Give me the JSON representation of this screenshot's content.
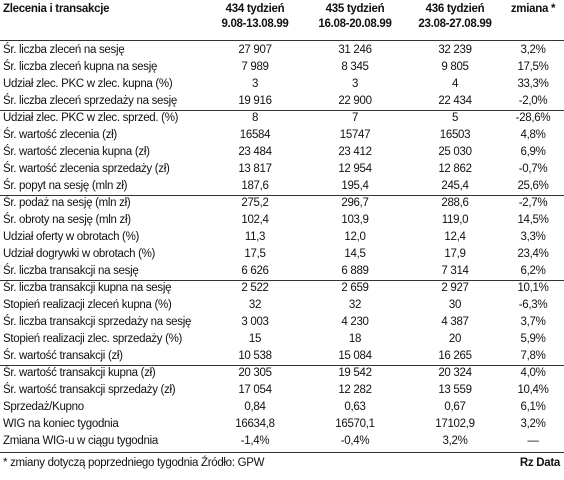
{
  "header": {
    "title": "Zlecenia i transakcje",
    "columns": [
      {
        "week": "434 tydzień",
        "dates": "9.08-13.08.99"
      },
      {
        "week": "435 tydzień",
        "dates": "16.08-20.08.99"
      },
      {
        "week": "436 tydzień",
        "dates": "23.08-27.08.99"
      }
    ],
    "change": "zmiana *"
  },
  "table": {
    "rows": [
      [
        "Śr. liczba zleceń na sesję",
        "27 907",
        "31 246",
        "32 239",
        "3,2%"
      ],
      [
        "Śr. liczba zleceń kupna na sesję",
        "7 989",
        "8 345",
        "9 805",
        "17,5%"
      ],
      [
        "Udział zlec. PKC w zlec. kupna (%)",
        "3",
        "3",
        "4",
        "33,3%"
      ],
      [
        "Śr. liczba zleceń sprzedaży na sesję",
        "19 916",
        "22 900",
        "22 434",
        "-2,0%"
      ],
      [
        "Udział zlec. PKC w zlec. sprzed. (%)",
        "8",
        "7",
        "5",
        "-28,6%"
      ],
      [
        "Śr. wartość zlecenia (zł)",
        "16584",
        "15747",
        "16503",
        "4,8%"
      ],
      [
        "Śr. wartość zlecenia kupna (zł)",
        "23 484",
        "23 412",
        "25 030",
        "6,9%"
      ],
      [
        "Śr. wartość zlecenia sprzedaży (zł)",
        "13 817",
        "12 954",
        "12 862",
        "-0,7%"
      ],
      [
        "Śr. popyt na sesję (mln zł)",
        "187,6",
        "195,4",
        "245,4",
        "25,6%"
      ],
      [
        "Śr. podaż na sesję (mln zł)",
        "275,2",
        "296,7",
        "288,6",
        "-2,7%"
      ],
      [
        "Śr. obroty na sesję (mln zł)",
        "102,4",
        "103,9",
        "119,0",
        "14,5%"
      ],
      [
        "Udział oferty w obrotach (%)",
        "11,3",
        "12,0",
        "12,4",
        "3,3%"
      ],
      [
        "Udział dogrywki w obrotach (%)",
        "17,5",
        "14,5",
        "17,9",
        "23,4%"
      ],
      [
        "Śr. liczba transakcji na sesję",
        "6 626",
        "6 889",
        "7 314",
        "6,2%"
      ],
      [
        "Śr. liczba transakcji kupna na sesję",
        "2 522",
        "2 659",
        "2 927",
        "10,1%"
      ],
      [
        "Stopień realizacji zleceń kupna (%)",
        "32",
        "32",
        "30",
        "-6,3%"
      ],
      [
        "Śr. liczba transakcji sprzedaży na sesję",
        "3 003",
        "4 230",
        "4 387",
        "3,7%"
      ],
      [
        "Stopień realizacji zlec. sprzedaży (%)",
        "15",
        "18",
        "20",
        "5,9%"
      ],
      [
        "Śr. wartość transakcji (zł)",
        "10 538",
        "15 084",
        "16 265",
        "7,8%"
      ],
      [
        "Śr. wartość transakcji kupna (zł)",
        "20 305",
        "19 542",
        "20 324",
        "4,0%"
      ],
      [
        "Śr. wartość transakcji sprzedaży (zł)",
        "17 054",
        "12 282",
        "13 559",
        "10,4%"
      ],
      [
        "Sprzedaż/Kupno",
        "0,84",
        "0,63",
        "0,67",
        "6,1%"
      ],
      [
        "WIG na koniec tygodnia",
        "16634,8",
        "16570,1",
        "17102,9",
        "3,2%"
      ],
      [
        "Zmiana WIG-u w ciągu tygodnia",
        "-1,4%",
        "-0,4%",
        "3,2%",
        "—"
      ]
    ]
  },
  "footer": {
    "note": "* zmiany dotyczą poprzedniego tygodnia Źródło: GPW",
    "source": "Rz Data"
  }
}
